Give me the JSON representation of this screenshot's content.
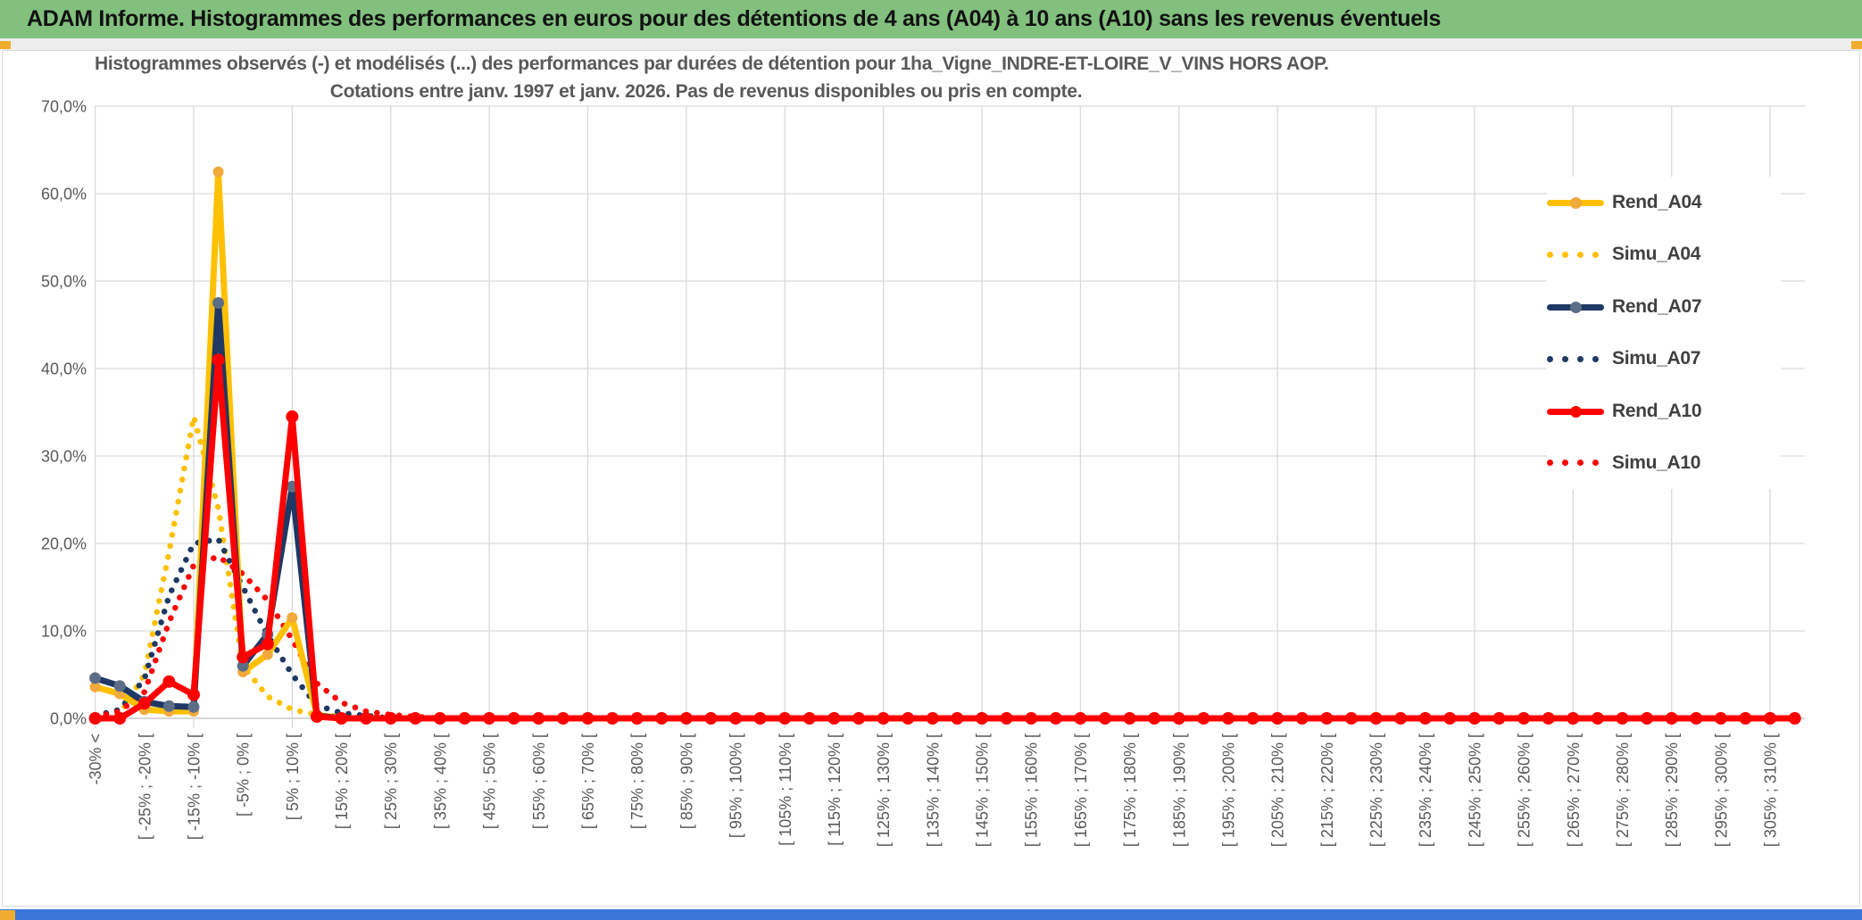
{
  "banner": {
    "title": "ADAM Informe. Histogrammes des performances en euros pour des détentions de 4 ans (A04) à 10 ans (A10) sans les revenus éventuels",
    "background_color": "#82C07E"
  },
  "window": {
    "bottom_bar_color": "#3B76D9",
    "accent_color": "#F0AC2F"
  },
  "chart_data": {
    "type": "line",
    "title": "Histogrammes observés (-) et modélisés (...) des performances par durées de détention pour 1ha_Vigne_INDRE-ET-LOIRE_V_VINS HORS AOP.",
    "subtitle": "Cotations entre janv. 1997 et janv. 2026. Pas de revenus disponibles ou pris en compte.",
    "xlabel": "",
    "ylabel": "",
    "ylim": [
      0,
      70
    ],
    "grid": true,
    "legend_position": "right",
    "y_tick_labels": [
      "70,0%",
      "60,0%",
      "50,0%",
      "40,0%",
      "30,0%",
      "20,0%",
      "10,0%",
      "0,0%"
    ],
    "x_tick_labels": [
      "-30% <",
      "[ -25% ; -20% [",
      "[ -15% ; -10% [",
      "[ -5% ; 0% [",
      "[ 5% ; 10% [",
      "[ 15% ; 20% [",
      "[ 25% ; 30% [",
      "[ 35% ; 40% [",
      "[ 45% ; 50% [",
      "[ 55% ; 60% [",
      "[ 65% ; 70% [",
      "[ 75% ; 80% [",
      "[ 85% ; 90% [",
      "[ 95% ; 100% [",
      "[ 105% ; 110% [",
      "[ 115% ; 120% [",
      "[ 125% ; 130% [",
      "[ 135% ; 140% [",
      "[ 145% ; 150% [",
      "[ 155% ; 160% [",
      "[ 165% ; 170% [",
      "[ 175% ; 180% [",
      "[ 185% ; 190% [",
      "[ 195% ; 200% [",
      "[ 205% ; 210% [",
      "[ 215% ; 220% [",
      "[ 225% ; 230% [",
      "[ 235% ; 240% [",
      "[ 245% ; 250% [",
      "[ 255% ; 260% [",
      "[ 265% ; 270% [",
      "[ 275% ; 280% [",
      "[ 285% ; 290% [",
      "[ 295% ; 300% [",
      "[ 305% ; 310% ["
    ],
    "x_label_every": 2,
    "n_points": 70,
    "series": [
      {
        "name": "Simu_A04",
        "line_style": "dotted",
        "color": "#FFC000",
        "values": [
          0.2,
          0.5,
          5,
          19,
          34.5,
          24,
          6,
          2.5,
          1,
          0.4,
          0.2,
          0,
          0,
          0,
          0,
          0,
          0,
          0,
          0,
          0,
          0,
          0,
          0,
          0,
          0,
          0,
          0,
          0,
          0,
          0,
          0,
          0,
          0,
          0,
          0,
          0,
          0,
          0,
          0,
          0,
          0,
          0,
          0,
          0,
          0,
          0,
          0,
          0,
          0,
          0,
          0,
          0,
          0,
          0,
          0,
          0,
          0,
          0,
          0,
          0,
          0,
          0,
          0,
          0,
          0,
          0,
          0,
          0,
          0,
          0
        ]
      },
      {
        "name": "Simu_A07",
        "line_style": "dotted",
        "color": "#1F3864",
        "values": [
          0.3,
          1,
          4.5,
          14,
          20,
          20.5,
          15,
          9.5,
          5,
          1.5,
          0.6,
          0.3,
          0,
          0,
          0,
          0,
          0,
          0,
          0,
          0,
          0,
          0,
          0,
          0,
          0,
          0,
          0,
          0,
          0,
          0,
          0,
          0,
          0,
          0,
          0,
          0,
          0,
          0,
          0,
          0,
          0,
          0,
          0,
          0,
          0,
          0,
          0,
          0,
          0,
          0,
          0,
          0,
          0,
          0,
          0,
          0,
          0,
          0,
          0,
          0,
          0,
          0,
          0,
          0,
          0,
          0,
          0,
          0,
          0,
          0
        ]
      },
      {
        "name": "Simu_A10",
        "line_style": "dotted",
        "color": "#FF0000",
        "values": [
          0.2,
          0.8,
          3,
          11,
          17.5,
          18.5,
          16.5,
          13.5,
          9,
          4,
          1.8,
          0.8,
          0.4,
          0.2,
          0,
          0,
          0,
          0,
          0,
          0,
          0,
          0,
          0,
          0,
          0,
          0,
          0,
          0,
          0,
          0,
          0,
          0,
          0,
          0,
          0,
          0,
          0,
          0,
          0,
          0,
          0,
          0,
          0,
          0,
          0,
          0,
          0,
          0,
          0,
          0,
          0,
          0,
          0,
          0,
          0,
          0,
          0,
          0,
          0,
          0,
          0,
          0,
          0,
          0,
          0,
          0,
          0,
          0,
          0,
          0
        ]
      },
      {
        "name": "Rend_A04",
        "line_style": "solid",
        "color": "#FFC000",
        "marker_color": "#F2A93B",
        "marker_radius": 6,
        "values": [
          3.6,
          2.8,
          1,
          0.8,
          0.8,
          62.5,
          5.3,
          7.3,
          11.5,
          0.4,
          0,
          0,
          0,
          0,
          0,
          0,
          0,
          0,
          0,
          0,
          0,
          0,
          0,
          0,
          0,
          0,
          0,
          0,
          0,
          0,
          0,
          0,
          0,
          0,
          0,
          0,
          0,
          0,
          0,
          0,
          0,
          0,
          0,
          0,
          0,
          0,
          0,
          0,
          0,
          0,
          0,
          0,
          0,
          0,
          0,
          0,
          0,
          0,
          0,
          0,
          0,
          0,
          0,
          0,
          0,
          0,
          0,
          0,
          0,
          0
        ]
      },
      {
        "name": "Rend_A07",
        "line_style": "solid",
        "color": "#1F3864",
        "marker_color": "#5C6E87",
        "marker_radius": 6.5,
        "values": [
          4.6,
          3.7,
          1.9,
          1.4,
          1.3,
          47.5,
          6,
          9.6,
          26.5,
          0.3,
          0,
          0,
          0,
          0,
          0,
          0,
          0,
          0,
          0,
          0,
          0,
          0,
          0,
          0,
          0,
          0,
          0,
          0,
          0,
          0,
          0,
          0,
          0,
          0,
          0,
          0,
          0,
          0,
          0,
          0,
          0,
          0,
          0,
          0,
          0,
          0,
          0,
          0,
          0,
          0,
          0,
          0,
          0,
          0,
          0,
          0,
          0,
          0,
          0,
          0,
          0,
          0,
          0,
          0,
          0,
          0,
          0,
          0,
          0,
          0
        ]
      },
      {
        "name": "Rend_A10",
        "line_style": "solid",
        "color": "#FF0000",
        "marker_color": "#FF0000",
        "marker_radius": 7,
        "values": [
          0,
          0,
          1.7,
          4.2,
          2.7,
          41,
          7,
          8.5,
          34.5,
          0.2,
          0,
          0,
          0,
          0,
          0,
          0,
          0,
          0,
          0,
          0,
          0,
          0,
          0,
          0,
          0,
          0,
          0,
          0,
          0,
          0,
          0,
          0,
          0,
          0,
          0,
          0,
          0,
          0,
          0,
          0,
          0,
          0,
          0,
          0,
          0,
          0,
          0,
          0,
          0,
          0,
          0,
          0,
          0,
          0,
          0,
          0,
          0,
          0,
          0,
          0,
          0,
          0,
          0,
          0,
          0,
          0,
          0,
          0,
          0,
          0
        ]
      }
    ],
    "legend_order": [
      "Rend_A04",
      "Simu_A04",
      "Rend_A07",
      "Simu_A07",
      "Rend_A10",
      "Simu_A10"
    ],
    "colors": {
      "gridline": "#D9D9D9",
      "axis_line": "#BFBFBF",
      "axis_text": "#595959",
      "title_text": "#595959",
      "legend_text": "#404040"
    }
  }
}
